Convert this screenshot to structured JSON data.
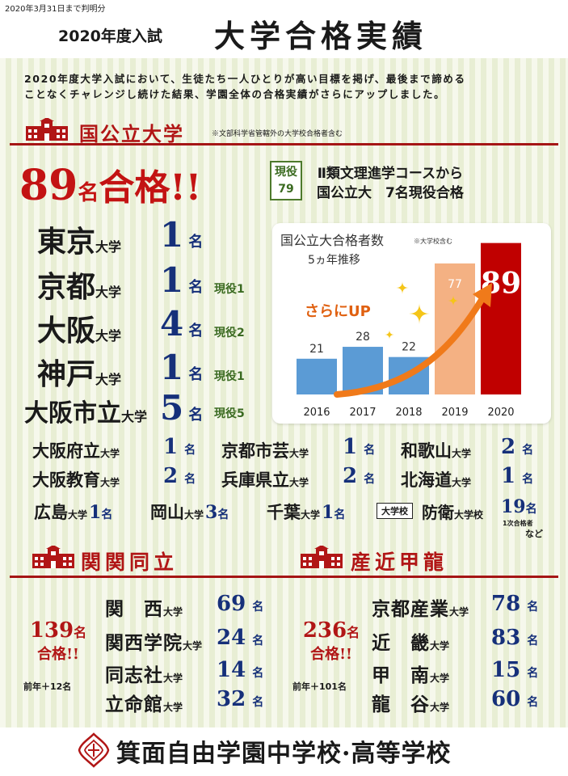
{
  "header": {
    "notice": "2020年3月31日まで判明分",
    "subtitle": "2020年度入試",
    "title": "大学合格実績"
  },
  "intro": {
    "line1": "2020年度大学入試において、生徒たち一人ひとりが高い目標を掲げ、最後まで諦める",
    "line2": "ことなくチャレンジし続けた結果、学園全体の合格実績がさらにアップしました。"
  },
  "national": {
    "heading": "国公立大学",
    "note": "※文部科学省管轄外の大学校合格者含む",
    "total_number": "89",
    "total_unit": "名",
    "total_suffix": "合格!!",
    "active_label": "現役",
    "active_number": "79",
    "course_line1": "Ⅱ類文理進学コースから",
    "course_line2": "国公立大　7名現役合格",
    "major": [
      {
        "name": "東京",
        "suffix": "大学",
        "count": "1",
        "unit": "名",
        "active": ""
      },
      {
        "name": "京都",
        "suffix": "大学",
        "count": "1",
        "unit": "名",
        "active": "現役1"
      },
      {
        "name": "大阪",
        "suffix": "大学",
        "count": "4",
        "unit": "名",
        "active": "現役2"
      },
      {
        "name": "神戸",
        "suffix": "大学",
        "count": "1",
        "unit": "名",
        "active": "現役1"
      },
      {
        "name": "大阪市立",
        "suffix": "大学",
        "count": "5",
        "unit": "名",
        "active": "現役5"
      }
    ],
    "others": [
      {
        "name": "大阪府立",
        "suffix": "大学",
        "count": "1",
        "unit": "名"
      },
      {
        "name": "京都市芸",
        "suffix": "大学",
        "count": "1",
        "unit": "名"
      },
      {
        "name": "和歌山",
        "suffix": "大学",
        "count": "2",
        "unit": "名"
      },
      {
        "name": "大阪教育",
        "suffix": "大学",
        "count": "2",
        "unit": "名"
      },
      {
        "name": "兵庫県立",
        "suffix": "大学",
        "count": "2",
        "unit": "名"
      },
      {
        "name": "北海道",
        "suffix": "大学",
        "count": "1",
        "unit": "名"
      },
      {
        "name": "広島",
        "suffix": "大学",
        "count": "1",
        "unit": "名"
      },
      {
        "name": "岡山",
        "suffix": "大学",
        "count": "3",
        "unit": "名"
      },
      {
        "name": "千葉",
        "suffix": "大学",
        "count": "1",
        "unit": "名"
      }
    ],
    "academy_tag": "大学校",
    "academy": {
      "name": "防衛",
      "suffix": "大学校",
      "count": "19",
      "unit": "名",
      "note": "1次合格者",
      "etc": "など"
    }
  },
  "chart_data": {
    "type": "bar",
    "title": "国公立大合格者数",
    "subtitle": "5ヵ年推移",
    "note": "※大学校含む",
    "annotation": "さらにUP",
    "categories": [
      "2016",
      "2017",
      "2018",
      "2019",
      "2020"
    ],
    "values": [
      21,
      28,
      22,
      77,
      89
    ],
    "colors": [
      "#5b9bd5",
      "#5b9bd5",
      "#5b9bd5",
      "#f4b183",
      "#c00000"
    ],
    "ylim": [
      0,
      95
    ]
  },
  "kankandoritsu": {
    "heading": "関関同立",
    "total_number": "139",
    "total_unit": "名",
    "total_suffix": "合格!!",
    "prev_note": "前年＋12名",
    "items": [
      {
        "name": "関　西",
        "suffix": "大学",
        "count": "69",
        "unit": "名"
      },
      {
        "name": "関西学院",
        "suffix": "大学",
        "count": "24",
        "unit": "名"
      },
      {
        "name": "同志社",
        "suffix": "大学",
        "count": "14",
        "unit": "名"
      },
      {
        "name": "立命館",
        "suffix": "大学",
        "count": "32",
        "unit": "名"
      }
    ]
  },
  "sankinkouryu": {
    "heading": "産近甲龍",
    "total_number": "236",
    "total_unit": "名",
    "total_suffix": "合格!!",
    "prev_note": "前年＋101名",
    "items": [
      {
        "name": "京都産業",
        "suffix": "大学",
        "count": "78",
        "unit": "名"
      },
      {
        "name": "近　畿",
        "suffix": "大学",
        "count": "83",
        "unit": "名"
      },
      {
        "name": "甲　南",
        "suffix": "大学",
        "count": "15",
        "unit": "名"
      },
      {
        "name": "龍　谷",
        "suffix": "大学",
        "count": "60",
        "unit": "名"
      }
    ]
  },
  "footer": {
    "school_name": "箕面自由学園中学校·高等学校",
    "emblem_icon": "school-emblem-icon",
    "building_icon": "school-building-icon"
  },
  "colors": {
    "accent_red": "#b11616",
    "count_navy": "#16307a",
    "active_green": "#3b6b21"
  }
}
